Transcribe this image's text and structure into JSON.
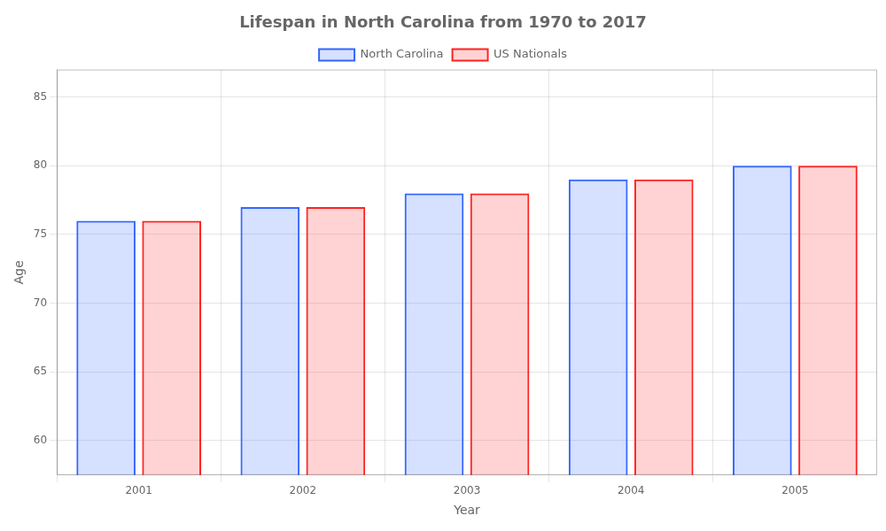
{
  "chart_data": {
    "type": "bar",
    "title": "Lifespan in North Carolina from 1970 to 2017",
    "xlabel": "Year",
    "ylabel": "Age",
    "categories": [
      "2001",
      "2002",
      "2003",
      "2004",
      "2005"
    ],
    "series": [
      {
        "name": "North Carolina",
        "color": "#3366ff",
        "values": [
          76,
          77,
          78,
          79,
          80
        ]
      },
      {
        "name": "US Nationals",
        "color": "#ff2222",
        "values": [
          76,
          77,
          78,
          79,
          80
        ]
      }
    ],
    "ylim": [
      57.5,
      87
    ],
    "yticks": [
      60,
      65,
      70,
      75,
      80,
      85
    ],
    "grid": true,
    "legend": "top"
  }
}
